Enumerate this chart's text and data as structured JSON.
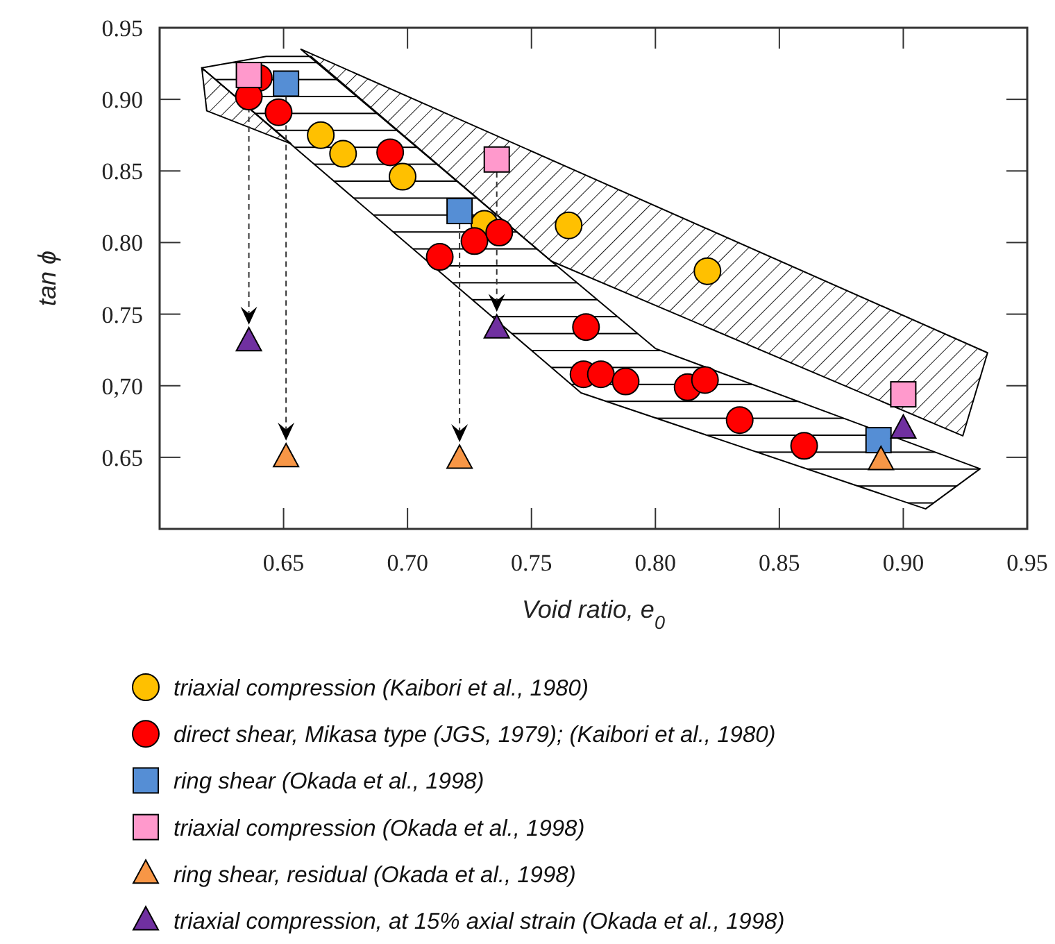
{
  "chart_data": {
    "type": "scatter",
    "xlabel": "Void ratio, e$_{0}$",
    "ylabel": "tan ϕ",
    "xlim": [
      0.6,
      0.95
    ],
    "ylim": [
      0.6,
      0.95
    ],
    "xticks": [
      0.65,
      {
        "value": 0.7,
        "label": "0.70"
      },
      0.75,
      {
        "value": 0.8,
        "label": "0.80"
      },
      0.85,
      {
        "value": 0.9,
        "label": "0.90"
      },
      0.95
    ],
    "yticks": [
      0.65,
      {
        "value": 0.7,
        "label": "0,70"
      },
      0.75,
      {
        "value": 0.8,
        "label": "0.80"
      },
      0.85,
      {
        "value": 0.9,
        "label": "0.90"
      },
      0.95
    ],
    "legend": "bottom",
    "series": [
      {
        "type": "area",
        "color": "#000000",
        "x": [
          0.657,
          0.934,
          0.924,
          0.758
        ],
        "values": [
          0.935,
          0.723,
          0.665,
          0.787
        ]
      },
      {
        "type": "area",
        "color": "#000000",
        "x": [
          0.617,
          0.643,
          0.661,
          0.758,
          0.8,
          0.931,
          0.909,
          0.77
        ],
        "values": [
          0.922,
          0.93,
          0.93,
          0.787,
          0.726,
          0.642,
          0.614,
          0.695
        ]
      },
      {
        "type": "area",
        "color": "#000000",
        "x": [
          0.617,
          0.619,
          0.653
        ],
        "values": [
          0.922,
          0.892,
          0.869
        ]
      },
      {
        "name": "triaxial compression (Kaibori et al., 1980)",
        "marker": "circle",
        "color": "#ffc000",
        "x": [
          0.665,
          0.674,
          0.698,
          0.731,
          0.765,
          0.821
        ],
        "values": [
          0.875,
          0.862,
          0.846,
          0.813,
          0.812,
          0.78
        ]
      },
      {
        "name": "direct shear, Mikasa type (JGS, 1979); (Kaibori et al., 1980)",
        "marker": "circle",
        "color": "#ff0000",
        "x": [
          0.64,
          0.636,
          0.648,
          0.693,
          0.713,
          0.727,
          0.737,
          0.772,
          0.771,
          0.778,
          0.788,
          0.813,
          0.82,
          0.834,
          0.86
        ],
        "values": [
          0.915,
          0.902,
          0.891,
          0.863,
          0.79,
          0.801,
          0.807,
          0.741,
          0.708,
          0.708,
          0.703,
          0.699,
          0.704,
          0.676,
          0.658
        ]
      },
      {
        "name": "ring shear (Okada et al., 1998)",
        "marker": "square",
        "color": "#558ed5",
        "x": [
          0.651,
          0.721,
          0.89
        ],
        "values": [
          0.911,
          0.822,
          0.662
        ]
      },
      {
        "name": "triaxial compression (Okada et al., 1998)",
        "marker": "square",
        "color": "#ff99cc",
        "x": [
          0.636,
          0.736,
          0.9
        ],
        "values": [
          0.917,
          0.858,
          0.694
        ]
      },
      {
        "name": "ring shear, residual (Okada et al., 1998)",
        "marker": "triangle",
        "color": "#f79646",
        "x": [
          0.651,
          0.721,
          0.891
        ],
        "values": [
          0.65,
          0.649,
          0.648
        ]
      },
      {
        "name": "triaxial compression, at 15% axial strain (Okada et al., 1998)",
        "marker": "triangle",
        "color": "#7030a0",
        "x": [
          0.636,
          0.736,
          0.9
        ],
        "values": [
          0.731,
          0.74,
          0.67
        ]
      }
    ]
  }
}
